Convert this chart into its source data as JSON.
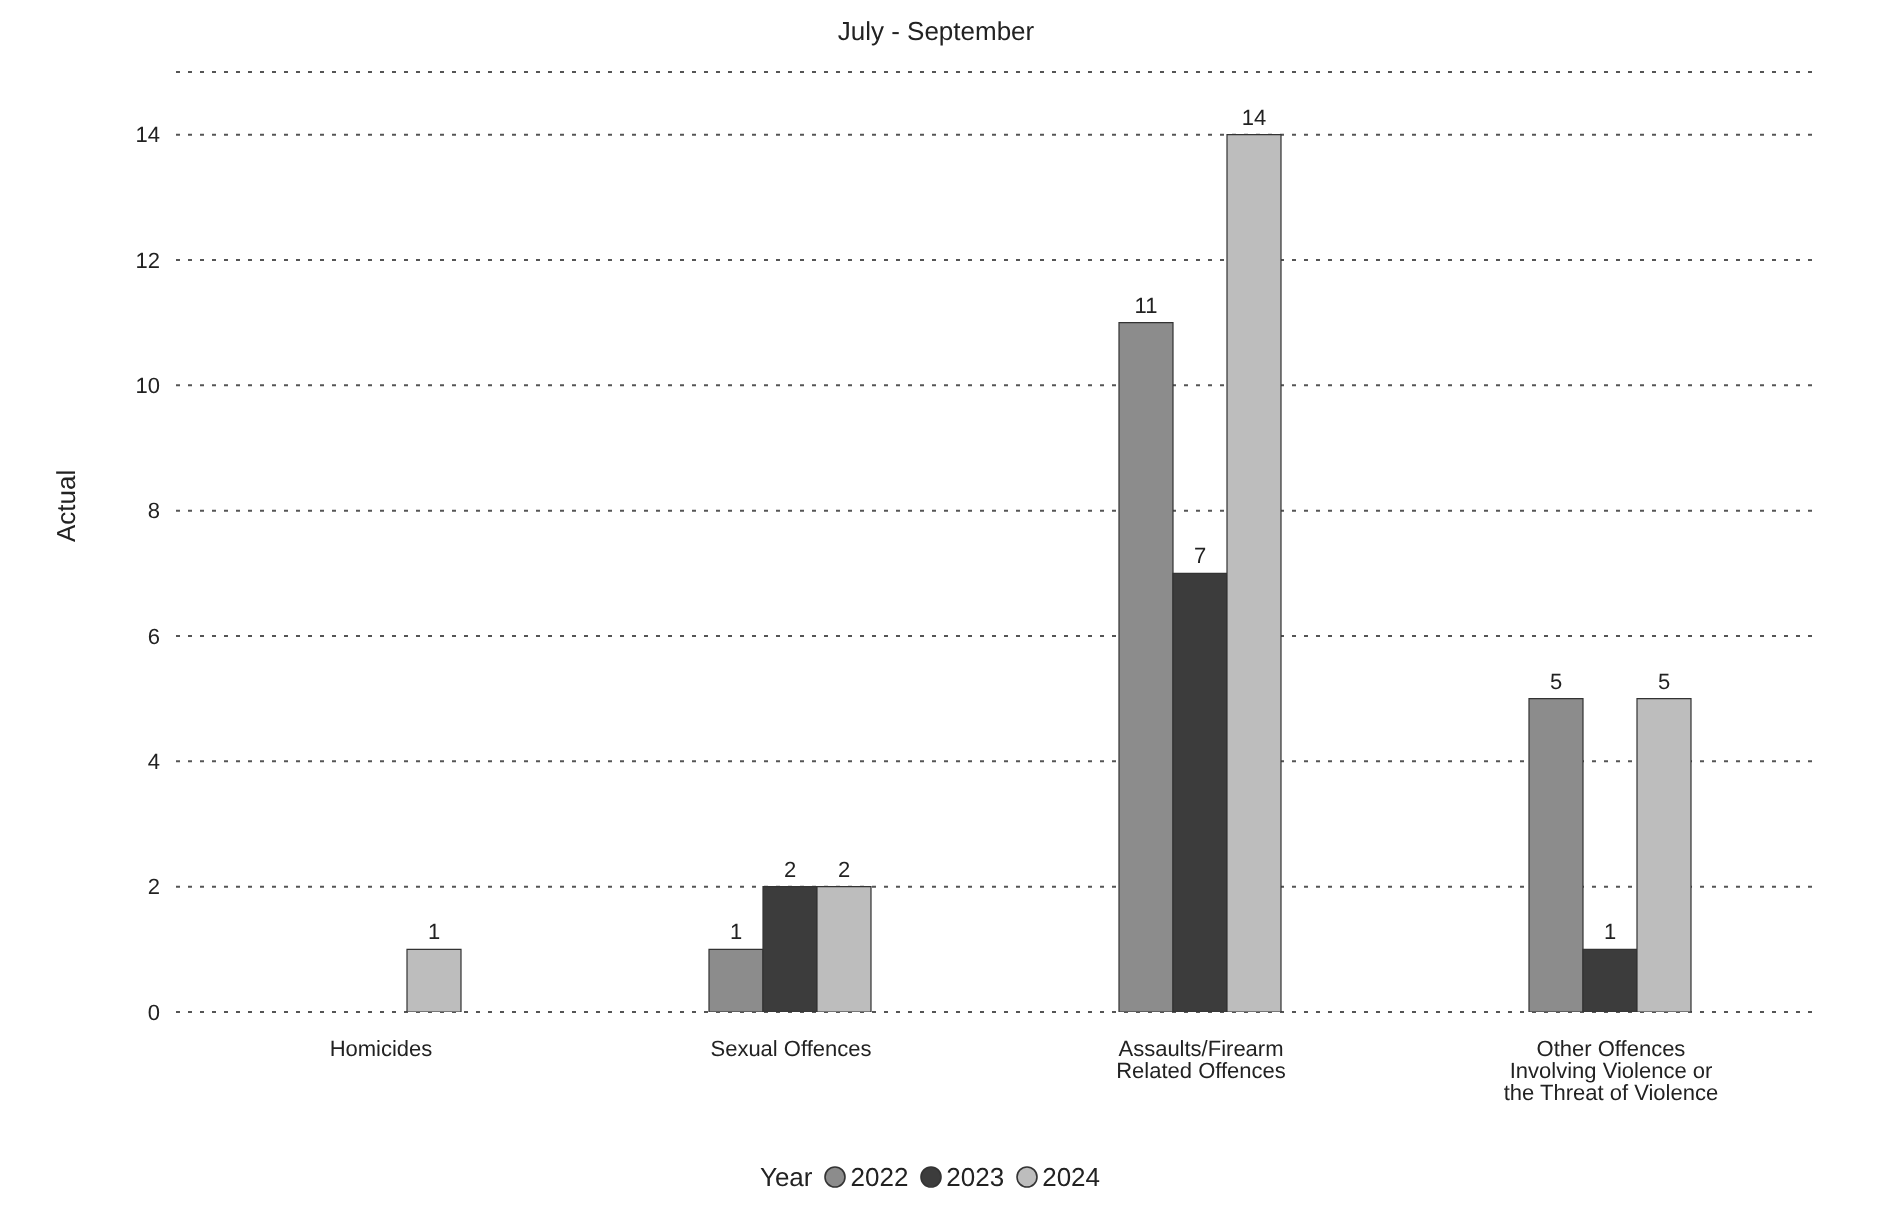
{
  "chart_data": {
    "type": "bar",
    "title": "July - September",
    "ylabel": "Actual",
    "legend_title": "Year",
    "categories": [
      "Homicides",
      "Sexual Offences",
      "Assaults/Firearm Related Offences",
      "Other Offences Involving Violence or the Threat of Violence"
    ],
    "series": [
      {
        "name": "2022",
        "color": "#8c8c8c",
        "values": [
          null,
          1,
          11,
          5
        ]
      },
      {
        "name": "2023",
        "color": "#3c3c3c",
        "values": [
          null,
          2,
          7,
          1
        ]
      },
      {
        "name": "2024",
        "color": "#bdbdbd",
        "values": [
          1,
          2,
          14,
          5
        ]
      }
    ],
    "ylim": [
      0,
      15
    ],
    "yticks": [
      0,
      2,
      4,
      6,
      8,
      10,
      12,
      14
    ],
    "grid": "y",
    "legend": "bottom",
    "data_labels": true
  }
}
